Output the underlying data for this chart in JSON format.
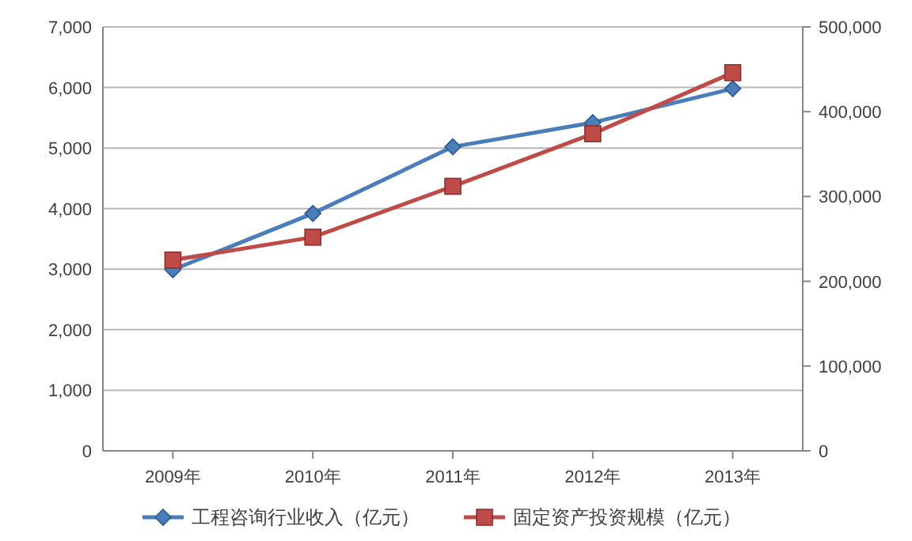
{
  "chart_data": {
    "type": "line",
    "categories": [
      "2009年",
      "2010年",
      "2011年",
      "2012年",
      "2013年"
    ],
    "series": [
      {
        "name": "工程咨询行业收入（亿元）",
        "color": "#4a7ebb",
        "marker": "diamond",
        "values": [
          2990,
          3920,
          5020,
          5420,
          5980
        ]
      },
      {
        "name": "固定资产投资规模（亿元）",
        "color": "#be4b48",
        "marker": "square",
        "axis": "y2",
        "values": [
          225000,
          252000,
          312000,
          374000,
          446000
        ]
      }
    ],
    "ylim": [
      0,
      7000
    ],
    "yticks": [
      0,
      {
        "value": 1000,
        "label": "1,000"
      },
      {
        "value": 2000,
        "label": "2,000"
      },
      {
        "value": 3000,
        "label": "3,000"
      },
      {
        "value": 4000,
        "label": "4,000"
      },
      {
        "value": 5000,
        "label": "5,000"
      },
      {
        "value": 6000,
        "label": "6,000"
      },
      {
        "value": 7000,
        "label": "7,000"
      }
    ],
    "y2lim": [
      0,
      500000
    ],
    "y2ticks": [
      0,
      {
        "value": 100000,
        "label": "100,000"
      },
      {
        "value": 200000,
        "label": "200,000"
      },
      {
        "value": 300000,
        "label": "300,000"
      },
      {
        "value": 400000,
        "label": "400,000"
      },
      {
        "value": 500000,
        "label": "500,000"
      }
    ],
    "grid": "y",
    "legend": "bottom",
    "line_style": "solid"
  }
}
